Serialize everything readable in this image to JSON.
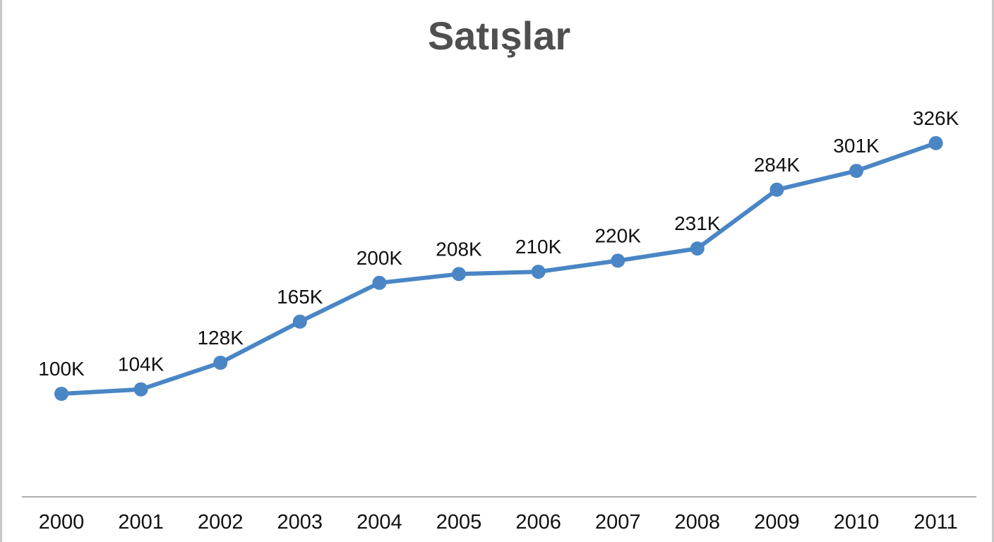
{
  "chart_data": {
    "type": "line",
    "title": "Satışlar",
    "xlabel": "",
    "ylabel": "",
    "categories": [
      "2000",
      "2001",
      "2002",
      "2003",
      "2004",
      "2005",
      "2006",
      "2007",
      "2008",
      "2009",
      "2010",
      "2011"
    ],
    "series": [
      {
        "values": [
          100,
          104,
          128,
          165,
          200,
          208,
          210,
          220,
          231,
          284,
          301,
          326
        ],
        "labels": [
          "100K",
          "104K",
          "128K",
          "165K",
          "200K",
          "208K",
          "210K",
          "220K",
          "231K",
          "284K",
          "301K",
          "326K"
        ],
        "color": "#4a86c5"
      }
    ],
    "ylim": [
      0,
      350
    ],
    "grid": false,
    "legend": "none"
  }
}
